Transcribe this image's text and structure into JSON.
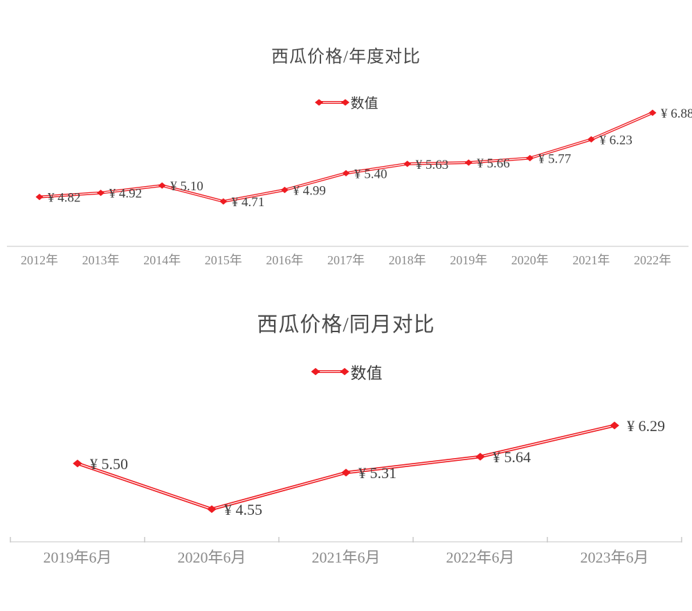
{
  "colors": {
    "series_red": "#ee1b21",
    "value_label": "#3f3f3f",
    "title": "#4a4a4a",
    "axis_label": "#8a8a8a",
    "axis_line": "#d9d9d9",
    "tick": "#c9c9c9",
    "background": "#ffffff"
  },
  "chart_data": [
    {
      "type": "line",
      "title": "西瓜价格/年度对比",
      "legend": "数值",
      "legend_position": "top-center",
      "marker": "diamond",
      "grid": false,
      "categories": [
        "2012年",
        "2013年",
        "2014年",
        "2015年",
        "2016年",
        "2017年",
        "2018年",
        "2019年",
        "2020年",
        "2021年",
        "2022年"
      ],
      "values": [
        4.82,
        4.92,
        5.1,
        4.71,
        4.99,
        5.4,
        5.63,
        5.66,
        5.77,
        6.23,
        6.88
      ],
      "value_labels": [
        "¥ 4.82",
        "¥ 4.92",
        "¥ 5.10",
        "¥ 4.71",
        "¥ 4.99",
        "¥ 5.40",
        "¥ 5.63",
        "¥ 5.66",
        "¥ 5.77",
        "¥ 6.23",
        "¥ 6.88"
      ],
      "currency": "¥",
      "ylim": [
        3.61,
        7.1
      ]
    },
    {
      "type": "line",
      "title": "西瓜价格/同月对比",
      "legend": "数值",
      "legend_position": "top-center",
      "marker": "diamond",
      "grid": false,
      "categories": [
        "2019年6月",
        "2020年6月",
        "2021年6月",
        "2022年6月",
        "2023年6月"
      ],
      "values": [
        5.5,
        4.55,
        5.31,
        5.64,
        6.29
      ],
      "value_labels": [
        "¥ 5.50",
        "¥ 4.55",
        "¥ 5.31",
        "¥ 5.64",
        "¥ 6.29"
      ],
      "currency": "¥",
      "ylim": [
        3.87,
        7.08
      ]
    }
  ]
}
